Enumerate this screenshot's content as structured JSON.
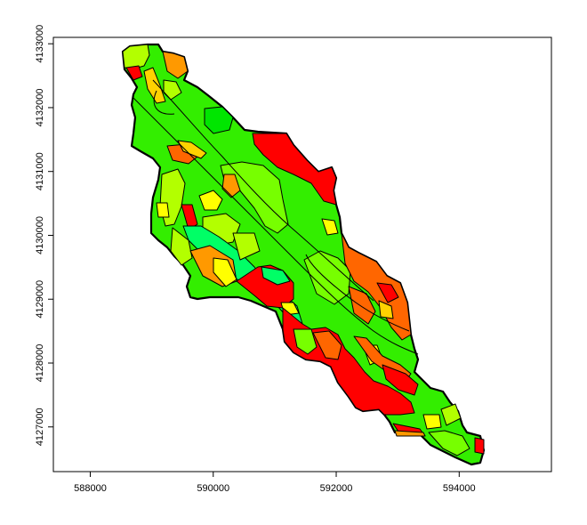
{
  "chart_data": {
    "type": "map",
    "x_ticks": [
      588000,
      590000,
      592000,
      594000
    ],
    "y_ticks": [
      4127000,
      4128000,
      4129000,
      4130000,
      4131000,
      4132000,
      4133000
    ],
    "xlim": [
      587400,
      595500
    ],
    "ylim": [
      4126300,
      4133100
    ],
    "axis_box": true,
    "grid": false,
    "legend": "none",
    "palette": {
      "dark_green": "#00e600",
      "green": "#33ee00",
      "light_green": "#77ff00",
      "yellow_green": "#b3ff00",
      "teal_green": "#00ff66",
      "yellow": "#ffff00",
      "gold": "#ffd200",
      "orange": "#ff9900",
      "dark_orange": "#ff6600",
      "red": "#ff0000",
      "outline": "#000000"
    }
  }
}
